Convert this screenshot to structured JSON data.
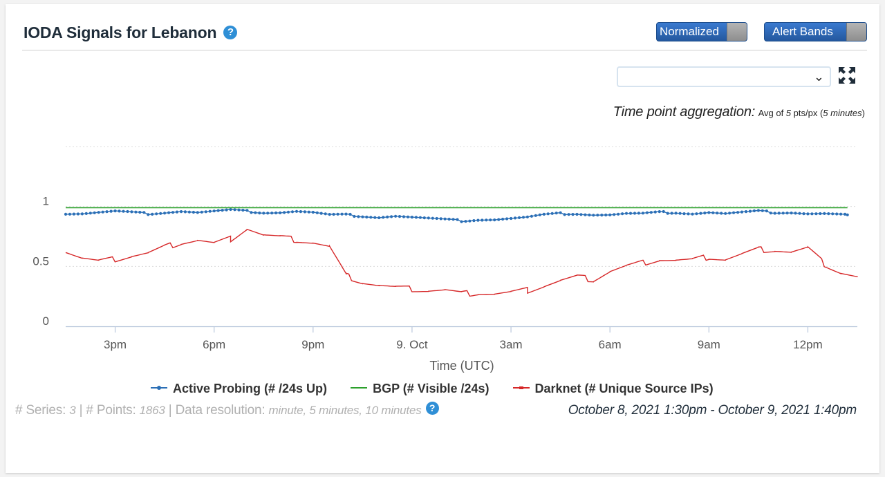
{
  "header": {
    "title": "IODA Signals for Lebanon",
    "help_icon": "question-circle-icon",
    "normalized_toggle": "Normalized",
    "alert_bands_toggle": "Alert Bands"
  },
  "controls": {
    "series_select_value": "",
    "expand_icon": "expand-arrows-icon"
  },
  "aggregation": {
    "label": "Time point aggregation:",
    "avg_prefix": "Avg of ",
    "pts": "5",
    "pts_suffix": " pts/px (",
    "interval": "5 minutes",
    "close": ")"
  },
  "meta": {
    "series_label": "# Series: ",
    "series_count": "3",
    "points_label": " | # Points: ",
    "points_count": "1863",
    "resolution_label": " | Data resolution: ",
    "resolution_value": "minute, 5 minutes, 10 minutes",
    "date_range": "October 8, 2021 1:30pm - October 9, 2021 1:40pm"
  },
  "colors": {
    "active": "#2b6fb6",
    "bgp": "#2ca02c",
    "darknet": "#d62728",
    "help": "#2f8fd6"
  },
  "chart_data": {
    "type": "line",
    "xlabel": "Time (UTC)",
    "x_start": "2021-10-08 13:30",
    "x_end": "2021-10-09 13:40",
    "x_ticks": [
      "3pm",
      "6pm",
      "9pm",
      "9. Oct",
      "3am",
      "6am",
      "9am",
      "12pm"
    ],
    "x_tick_hours": [
      15,
      18,
      21,
      24,
      27,
      30,
      33,
      36
    ],
    "y_ticks": [
      "0",
      "0.5",
      "1"
    ],
    "y_tick_values": [
      0,
      0.5,
      1
    ],
    "ylim": [
      0,
      1.5
    ],
    "x_hours_range": [
      13.5,
      37.5
    ],
    "series": [
      {
        "name": "Active Probing (# /24s Up)",
        "color": "#2b6fb6",
        "x_hours": [
          13.5,
          14.0,
          14.5,
          15.0,
          15.5,
          16.0,
          16.5,
          17.0,
          17.5,
          18.0,
          18.5,
          19.0,
          19.5,
          20.0,
          20.5,
          21.0,
          21.5,
          22.0,
          22.5,
          23.0,
          23.5,
          24.0,
          24.5,
          25.0,
          25.5,
          26.0,
          26.5,
          27.0,
          27.5,
          28.0,
          28.5,
          29.0,
          29.5,
          30.0,
          30.5,
          31.0,
          31.5,
          32.0,
          32.5,
          33.0,
          33.5,
          34.0,
          34.5,
          35.0,
          35.5,
          36.0,
          36.5,
          37.2
        ],
        "values": [
          0.94,
          0.94,
          0.95,
          0.96,
          0.95,
          0.94,
          0.95,
          0.96,
          0.95,
          0.96,
          0.97,
          0.96,
          0.95,
          0.95,
          0.96,
          0.95,
          0.93,
          0.93,
          0.92,
          0.91,
          0.92,
          0.91,
          0.9,
          0.89,
          0.88,
          0.89,
          0.89,
          0.9,
          0.91,
          0.93,
          0.94,
          0.94,
          0.93,
          0.93,
          0.94,
          0.94,
          0.95,
          0.95,
          0.94,
          0.95,
          0.94,
          0.95,
          0.96,
          0.95,
          0.95,
          0.94,
          0.94,
          0.93
        ]
      },
      {
        "name": "BGP (# Visible /24s)",
        "color": "#2ca02c",
        "x_hours": [
          13.5,
          18.0,
          22.0,
          26.0,
          30.0,
          34.0,
          37.2
        ],
        "values": [
          0.99,
          0.99,
          0.99,
          0.99,
          0.99,
          0.99,
          0.99
        ]
      },
      {
        "name": "Darknet (# Unique Source IPs)",
        "color": "#d62728",
        "x_hours": [
          13.5,
          14.0,
          14.5,
          15.0,
          15.5,
          16.0,
          16.5,
          17.0,
          17.5,
          18.0,
          18.5,
          19.0,
          19.5,
          20.0,
          20.5,
          21.0,
          21.5,
          22.0,
          22.5,
          23.0,
          23.5,
          24.0,
          24.5,
          25.0,
          25.5,
          26.0,
          26.5,
          27.0,
          27.5,
          28.0,
          28.5,
          29.0,
          29.5,
          30.0,
          30.5,
          31.0,
          31.5,
          32.0,
          32.5,
          33.0,
          33.5,
          34.0,
          34.5,
          35.0,
          35.5,
          36.0,
          36.5,
          37.0,
          37.5
        ],
        "values": [
          0.63,
          0.57,
          0.54,
          0.56,
          0.59,
          0.61,
          0.66,
          0.7,
          0.72,
          0.69,
          0.73,
          0.82,
          0.76,
          0.74,
          0.72,
          0.7,
          0.66,
          0.42,
          0.37,
          0.34,
          0.32,
          0.31,
          0.3,
          0.3,
          0.27,
          0.28,
          0.27,
          0.28,
          0.3,
          0.34,
          0.38,
          0.41,
          0.39,
          0.46,
          0.5,
          0.53,
          0.56,
          0.55,
          0.55,
          0.58,
          0.56,
          0.6,
          0.64,
          0.64,
          0.62,
          0.65,
          0.52,
          0.45,
          0.41
        ]
      }
    ]
  }
}
